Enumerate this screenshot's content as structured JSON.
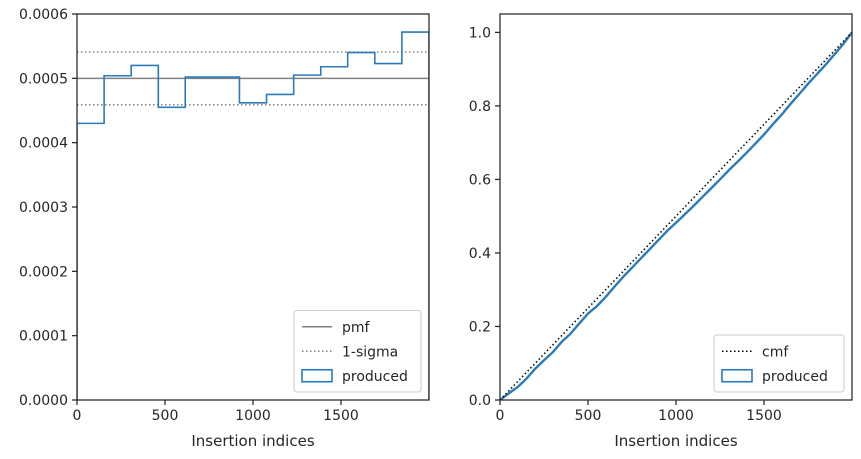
{
  "colors": {
    "produced": "#2b7bba",
    "pmf": "#808080",
    "sigma": "#808080",
    "cmf": "#000000",
    "axes": "#262626"
  },
  "chart_data": [
    {
      "type": "line",
      "xlabel": "Insertion indices",
      "ylabel": "",
      "xlim": [
        0,
        2000
      ],
      "ylim": [
        0,
        0.0006
      ],
      "xticks": [
        0,
        500,
        1000,
        1500
      ],
      "yticks": [
        0,
        0.0001,
        0.0002,
        0.0003,
        0.0004,
        0.0005,
        0.0006
      ],
      "xtick_labels": [
        "0",
        "500",
        "1000",
        "1500"
      ],
      "ytick_labels": [
        "0.0000",
        "0.0001",
        "0.0002",
        "0.0003",
        "0.0004",
        "0.0005",
        "0.0006"
      ],
      "legend_position": "lower-right",
      "grid": false,
      "pmf": 0.0005,
      "sigma_upper": 0.000541,
      "sigma_lower": 0.000459,
      "step_series": {
        "name": "produced",
        "bin_edges": [
          0,
          154,
          308,
          462,
          615,
          769,
          923,
          1077,
          1231,
          1385,
          1538,
          1692,
          1846,
          2000
        ],
        "values": [
          0.00043,
          0.000504,
          0.00052,
          0.000455,
          0.000502,
          0.000502,
          0.000462,
          0.000475,
          0.000505,
          0.000518,
          0.00054,
          0.000523,
          0.000572
        ]
      },
      "legend": [
        {
          "label": "pmf",
          "style": "solid-line"
        },
        {
          "label": "1-sigma",
          "style": "dotted-line"
        },
        {
          "label": "produced",
          "style": "box"
        }
      ]
    },
    {
      "type": "line",
      "xlabel": "Insertion indices",
      "ylabel": "",
      "xlim": [
        0,
        2000
      ],
      "ylim": [
        0,
        1.05
      ],
      "xticks": [
        0,
        500,
        1000,
        1500
      ],
      "yticks": [
        0,
        0.2,
        0.4,
        0.6,
        0.8,
        1.0
      ],
      "xtick_labels": [
        "0",
        "500",
        "1000",
        "1500"
      ],
      "ytick_labels": [
        "0.0",
        "0.2",
        "0.4",
        "0.6",
        "0.8",
        "1.0"
      ],
      "legend_position": "lower-right",
      "grid": false,
      "cmf": {
        "name": "cmf",
        "x": [
          0,
          2000
        ],
        "y": [
          0,
          1.0
        ]
      },
      "produced": {
        "name": "produced",
        "x": [
          0,
          50,
          100,
          150,
          200,
          250,
          300,
          350,
          400,
          450,
          500,
          550,
          600,
          650,
          700,
          750,
          800,
          850,
          900,
          950,
          1000,
          1050,
          1100,
          1150,
          1200,
          1250,
          1300,
          1350,
          1400,
          1450,
          1500,
          1550,
          1600,
          1650,
          1700,
          1750,
          1800,
          1850,
          1900,
          1950,
          2000
        ],
        "y": [
          0,
          0.018,
          0.035,
          0.058,
          0.085,
          0.108,
          0.13,
          0.158,
          0.18,
          0.208,
          0.235,
          0.255,
          0.28,
          0.308,
          0.335,
          0.36,
          0.385,
          0.41,
          0.435,
          0.46,
          0.482,
          0.505,
          0.528,
          0.552,
          0.576,
          0.6,
          0.625,
          0.648,
          0.672,
          0.697,
          0.722,
          0.75,
          0.776,
          0.805,
          0.832,
          0.86,
          0.886,
          0.912,
          0.94,
          0.968,
          1.0
        ]
      },
      "legend": [
        {
          "label": "cmf",
          "style": "dotted-line"
        },
        {
          "label": "produced",
          "style": "box"
        }
      ]
    }
  ]
}
